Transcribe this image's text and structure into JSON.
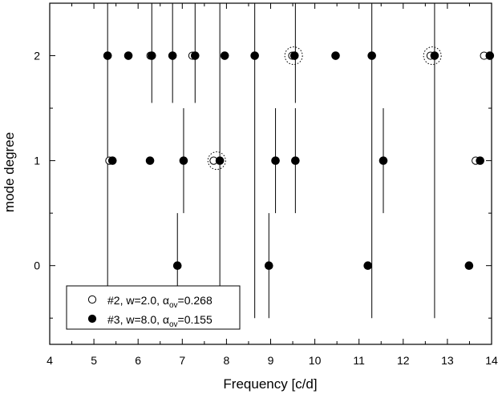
{
  "chart_data": {
    "type": "scatter",
    "xlabel": "Frequency [c/d]",
    "ylabel": "mode degree",
    "xlim": [
      4,
      14
    ],
    "ylim": [
      -0.75,
      2.5
    ],
    "x_ticks": [
      "4",
      "5",
      "6",
      "7",
      "8",
      "9",
      "10",
      "11",
      "12",
      "13",
      "14"
    ],
    "y_ticks": [
      "0",
      "1",
      "2"
    ],
    "grid": false,
    "legend_position": "bottom-left",
    "series": [
      {
        "name": "#2, w=2.0, α_ov=0.268",
        "legend_main": "#2, w=2.0, α",
        "legend_sub": "ov",
        "legend_tail": "=0.268",
        "marker": "open-circle",
        "points": [
          {
            "x": 5.31,
            "y": 2
          },
          {
            "x": 6.28,
            "y": 2
          },
          {
            "x": 7.23,
            "y": 2
          },
          {
            "x": 9.49,
            "y": 2
          },
          {
            "x": 12.62,
            "y": 2
          },
          {
            "x": 13.83,
            "y": 2
          },
          {
            "x": 5.35,
            "y": 1
          },
          {
            "x": 7.71,
            "y": 1
          },
          {
            "x": 13.64,
            "y": 1
          }
        ]
      },
      {
        "name": "#3, w=8.0, α_ov=0.155",
        "legend_main": "#3, w=8.0, α",
        "legend_sub": "ov",
        "legend_tail": "=0.155",
        "marker": "filled-circle",
        "points": [
          {
            "x": 5.31,
            "y": 2
          },
          {
            "x": 5.78,
            "y": 2
          },
          {
            "x": 6.31,
            "y": 2
          },
          {
            "x": 6.78,
            "y": 2
          },
          {
            "x": 7.29,
            "y": 2
          },
          {
            "x": 7.96,
            "y": 2
          },
          {
            "x": 8.64,
            "y": 2
          },
          {
            "x": 9.54,
            "y": 2
          },
          {
            "x": 10.47,
            "y": 2
          },
          {
            "x": 11.29,
            "y": 2
          },
          {
            "x": 12.71,
            "y": 2
          },
          {
            "x": 13.96,
            "y": 2
          },
          {
            "x": 5.42,
            "y": 1
          },
          {
            "x": 6.27,
            "y": 1
          },
          {
            "x": 7.03,
            "y": 1
          },
          {
            "x": 7.85,
            "y": 1
          },
          {
            "x": 9.11,
            "y": 1
          },
          {
            "x": 9.56,
            "y": 1
          },
          {
            "x": 11.55,
            "y": 1
          },
          {
            "x": 13.74,
            "y": 1
          },
          {
            "x": 6.89,
            "y": 0
          },
          {
            "x": 8.96,
            "y": 0
          },
          {
            "x": 11.2,
            "y": 0
          },
          {
            "x": 13.49,
            "y": 0
          }
        ]
      }
    ],
    "vertical_lines": [
      {
        "x": 5.31,
        "y": [
          -0.5,
          2.5
        ]
      },
      {
        "x": 6.31,
        "y": [
          1.55,
          2.5
        ]
      },
      {
        "x": 6.78,
        "y": [
          1.55,
          2.5
        ]
      },
      {
        "x": 7.29,
        "y": [
          1.55,
          2.5
        ]
      },
      {
        "x": 7.85,
        "y": [
          -0.5,
          2.5
        ]
      },
      {
        "x": 8.64,
        "y": [
          -0.5,
          2.5
        ]
      },
      {
        "x": 9.56,
        "y": [
          1.55,
          2.5
        ]
      },
      {
        "x": 11.29,
        "y": [
          -0.5,
          2.5
        ]
      },
      {
        "x": 12.71,
        "y": [
          -0.5,
          2.5
        ]
      },
      {
        "x": 7.03,
        "y": [
          0.5,
          1.5
        ]
      },
      {
        "x": 9.11,
        "y": [
          0.5,
          1.5
        ]
      },
      {
        "x": 9.56,
        "y": [
          0.5,
          1.5
        ]
      },
      {
        "x": 11.55,
        "y": [
          0.5,
          1.5
        ]
      },
      {
        "x": 6.89,
        "y": [
          -0.5,
          0.5
        ]
      },
      {
        "x": 8.96,
        "y": [
          -0.5,
          0.5
        ]
      }
    ],
    "highlighted": [
      {
        "x": 7.78,
        "y": 1
      },
      {
        "x": 9.52,
        "y": 2
      },
      {
        "x": 12.66,
        "y": 2
      }
    ]
  }
}
